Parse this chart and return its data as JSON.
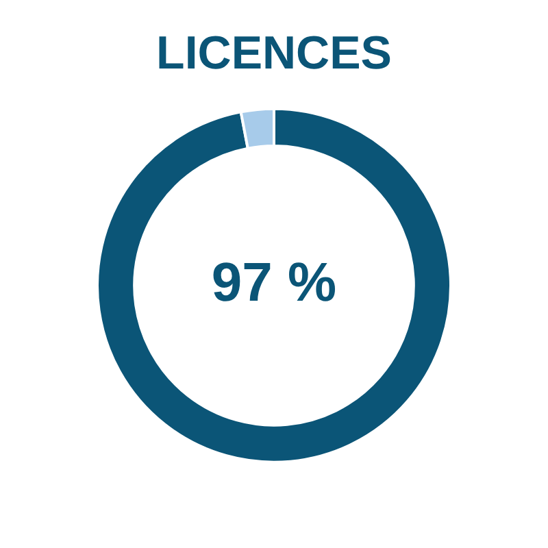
{
  "chart_data": {
    "type": "donut",
    "title": "LICENCES",
    "categories": [
      null,
      null
    ],
    "values": [
      97,
      3
    ],
    "colors": [
      "#0b5577",
      "#a7cbea"
    ],
    "annotations": [
      "97 %"
    ],
    "legend": false
  }
}
